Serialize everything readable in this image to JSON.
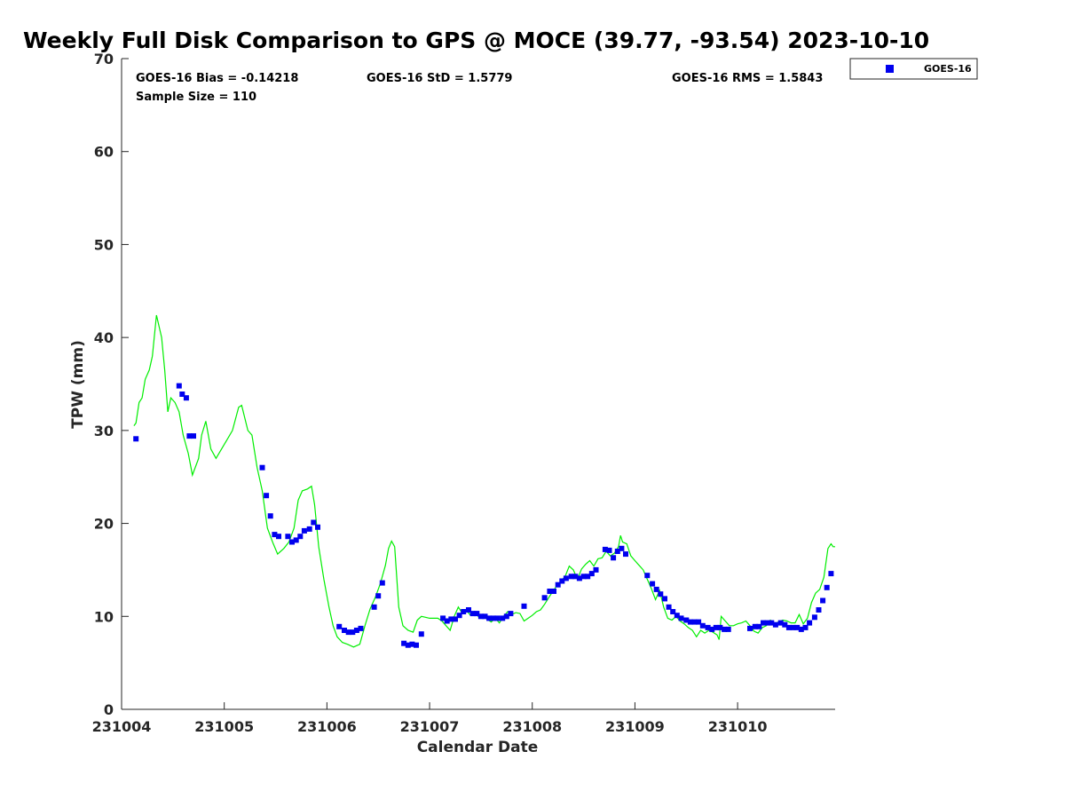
{
  "chart_data": {
    "type": "scatter",
    "title": "Weekly Full Disk Comparison to GPS @ MOCE (39.77, -93.54) 2023-10-10",
    "xlabel": "Calendar Date",
    "ylabel": "TPW (mm)",
    "x_tick_labels": [
      "231004",
      "231005",
      "231006",
      "231007",
      "231008",
      "231009",
      "231010"
    ],
    "x_tick_values": [
      4,
      5,
      6,
      7,
      8,
      9,
      10
    ],
    "xlim": [
      4,
      10.95
    ],
    "ylim": [
      0,
      70
    ],
    "y_tick_values": [
      0,
      10,
      20,
      30,
      40,
      50,
      60,
      70
    ],
    "y_tick_labels": [
      "0",
      "10",
      "20",
      "30",
      "40",
      "50",
      "60",
      "70"
    ],
    "grid": false,
    "legend_position": "outside-top-right",
    "annotations": {
      "bias": "GOES-16 Bias = -0.14218",
      "std": "GOES-16 StD = 1.5779",
      "rms": "GOES-16 RMS = 1.5843",
      "sample_size": "Sample Size = 110"
    },
    "series": [
      {
        "name": "GOES-16",
        "kind": "markers",
        "color": "#0000ee",
        "points": [
          [
            4.14,
            29.1
          ],
          [
            4.56,
            34.8
          ],
          [
            4.59,
            33.9
          ],
          [
            4.63,
            33.5
          ],
          [
            4.66,
            29.4
          ],
          [
            4.7,
            29.4
          ],
          [
            5.37,
            26.0
          ],
          [
            5.41,
            23.0
          ],
          [
            5.45,
            20.8
          ],
          [
            5.49,
            18.8
          ],
          [
            5.53,
            18.6
          ],
          [
            5.62,
            18.6
          ],
          [
            5.66,
            18.0
          ],
          [
            5.7,
            18.2
          ],
          [
            5.74,
            18.6
          ],
          [
            5.78,
            19.2
          ],
          [
            5.83,
            19.4
          ],
          [
            5.87,
            20.1
          ],
          [
            5.91,
            19.6
          ],
          [
            6.12,
            8.9
          ],
          [
            6.17,
            8.5
          ],
          [
            6.21,
            8.3
          ],
          [
            6.25,
            8.3
          ],
          [
            6.29,
            8.5
          ],
          [
            6.33,
            8.7
          ],
          [
            6.46,
            11.0
          ],
          [
            6.5,
            12.2
          ],
          [
            6.54,
            13.6
          ],
          [
            6.75,
            7.1
          ],
          [
            6.79,
            6.9
          ],
          [
            6.83,
            7.0
          ],
          [
            6.87,
            6.9
          ],
          [
            6.92,
            8.1
          ],
          [
            7.13,
            9.8
          ],
          [
            7.17,
            9.5
          ],
          [
            7.21,
            9.7
          ],
          [
            7.25,
            9.7
          ],
          [
            7.29,
            10.1
          ],
          [
            7.33,
            10.5
          ],
          [
            7.38,
            10.7
          ],
          [
            7.42,
            10.3
          ],
          [
            7.46,
            10.3
          ],
          [
            7.5,
            10.0
          ],
          [
            7.54,
            10.0
          ],
          [
            7.58,
            9.8
          ],
          [
            7.62,
            9.8
          ],
          [
            7.66,
            9.8
          ],
          [
            7.71,
            9.8
          ],
          [
            7.75,
            10.0
          ],
          [
            7.79,
            10.3
          ],
          [
            7.92,
            11.1
          ],
          [
            8.12,
            12.0
          ],
          [
            8.17,
            12.7
          ],
          [
            8.21,
            12.7
          ],
          [
            8.25,
            13.4
          ],
          [
            8.29,
            13.8
          ],
          [
            8.33,
            14.1
          ],
          [
            8.38,
            14.3
          ],
          [
            8.42,
            14.3
          ],
          [
            8.46,
            14.1
          ],
          [
            8.5,
            14.3
          ],
          [
            8.54,
            14.3
          ],
          [
            8.58,
            14.6
          ],
          [
            8.62,
            15.0
          ],
          [
            8.71,
            17.2
          ],
          [
            8.75,
            17.1
          ],
          [
            8.79,
            16.3
          ],
          [
            8.83,
            17.0
          ],
          [
            8.87,
            17.3
          ],
          [
            8.91,
            16.7
          ],
          [
            9.12,
            14.4
          ],
          [
            9.17,
            13.5
          ],
          [
            9.21,
            12.9
          ],
          [
            9.25,
            12.4
          ],
          [
            9.29,
            11.9
          ],
          [
            9.33,
            11.0
          ],
          [
            9.37,
            10.5
          ],
          [
            9.41,
            10.1
          ],
          [
            9.45,
            9.8
          ],
          [
            9.5,
            9.6
          ],
          [
            9.54,
            9.4
          ],
          [
            9.58,
            9.4
          ],
          [
            9.62,
            9.4
          ],
          [
            9.66,
            9.0
          ],
          [
            9.71,
            8.8
          ],
          [
            9.75,
            8.6
          ],
          [
            9.79,
            8.8
          ],
          [
            9.83,
            8.8
          ],
          [
            9.87,
            8.6
          ],
          [
            9.91,
            8.6
          ],
          [
            10.12,
            8.7
          ],
          [
            10.17,
            8.9
          ],
          [
            10.21,
            8.9
          ],
          [
            10.25,
            9.3
          ],
          [
            10.29,
            9.3
          ],
          [
            10.33,
            9.3
          ],
          [
            10.37,
            9.1
          ],
          [
            10.42,
            9.3
          ],
          [
            10.46,
            9.1
          ],
          [
            10.5,
            8.8
          ],
          [
            10.54,
            8.8
          ],
          [
            10.58,
            8.8
          ],
          [
            10.62,
            8.6
          ],
          [
            10.66,
            8.8
          ],
          [
            10.7,
            9.3
          ],
          [
            10.75,
            9.9
          ],
          [
            10.79,
            10.7
          ],
          [
            10.83,
            11.7
          ],
          [
            10.87,
            13.1
          ],
          [
            10.91,
            14.6
          ]
        ]
      },
      {
        "kind": "line",
        "color": "#00ee00",
        "points": [
          [
            4.12,
            30.5
          ],
          [
            4.14,
            30.8
          ],
          [
            4.17,
            33.0
          ],
          [
            4.2,
            33.5
          ],
          [
            4.23,
            35.5
          ],
          [
            4.27,
            36.5
          ],
          [
            4.3,
            38.0
          ],
          [
            4.34,
            42.4
          ],
          [
            4.39,
            40.0
          ],
          [
            4.42,
            36.5
          ],
          [
            4.45,
            32.0
          ],
          [
            4.48,
            33.5
          ],
          [
            4.52,
            33.0
          ],
          [
            4.56,
            32.0
          ],
          [
            4.6,
            29.5
          ],
          [
            4.65,
            27.5
          ],
          [
            4.69,
            25.2
          ],
          [
            4.75,
            27.0
          ],
          [
            4.78,
            29.5
          ],
          [
            4.82,
            31.0
          ],
          [
            4.87,
            28.0
          ],
          [
            4.92,
            27.0
          ],
          [
            5.0,
            28.5
          ],
          [
            5.08,
            30.0
          ],
          [
            5.14,
            32.5
          ],
          [
            5.17,
            32.7
          ],
          [
            5.23,
            30.0
          ],
          [
            5.27,
            29.5
          ],
          [
            5.32,
            26.0
          ],
          [
            5.37,
            23.5
          ],
          [
            5.42,
            19.5
          ],
          [
            5.47,
            18.0
          ],
          [
            5.52,
            16.7
          ],
          [
            5.58,
            17.3
          ],
          [
            5.63,
            18.0
          ],
          [
            5.68,
            19.5
          ],
          [
            5.72,
            22.5
          ],
          [
            5.76,
            23.5
          ],
          [
            5.81,
            23.7
          ],
          [
            5.85,
            24.0
          ],
          [
            5.88,
            22.0
          ],
          [
            5.92,
            17.5
          ],
          [
            5.97,
            14.0
          ],
          [
            6.02,
            11.0
          ],
          [
            6.06,
            9.0
          ],
          [
            6.1,
            7.8
          ],
          [
            6.15,
            7.2
          ],
          [
            6.2,
            7.0
          ],
          [
            6.26,
            6.7
          ],
          [
            6.32,
            7.0
          ],
          [
            6.37,
            9.0
          ],
          [
            6.42,
            10.8
          ],
          [
            6.47,
            12.0
          ],
          [
            6.52,
            13.5
          ],
          [
            6.57,
            15.5
          ],
          [
            6.6,
            17.3
          ],
          [
            6.63,
            18.1
          ],
          [
            6.66,
            17.5
          ],
          [
            6.7,
            11.0
          ],
          [
            6.74,
            9.0
          ],
          [
            6.79,
            8.5
          ],
          [
            6.84,
            8.3
          ],
          [
            6.88,
            9.6
          ],
          [
            6.92,
            10.0
          ],
          [
            6.96,
            9.9
          ],
          [
            7.0,
            9.8
          ],
          [
            7.04,
            9.8
          ],
          [
            7.08,
            9.8
          ],
          [
            7.12,
            9.5
          ],
          [
            7.16,
            9.0
          ],
          [
            7.2,
            8.5
          ],
          [
            7.24,
            10.0
          ],
          [
            7.28,
            11.0
          ],
          [
            7.32,
            10.3
          ],
          [
            7.36,
            10.6
          ],
          [
            7.4,
            10.1
          ],
          [
            7.44,
            10.5
          ],
          [
            7.48,
            9.9
          ],
          [
            7.52,
            10.0
          ],
          [
            7.56,
            9.7
          ],
          [
            7.6,
            9.4
          ],
          [
            7.64,
            9.8
          ],
          [
            7.68,
            9.3
          ],
          [
            7.72,
            10.0
          ],
          [
            7.76,
            10.5
          ],
          [
            7.8,
            10.2
          ],
          [
            7.84,
            10.4
          ],
          [
            7.88,
            10.3
          ],
          [
            7.92,
            9.5
          ],
          [
            7.96,
            9.8
          ],
          [
            8.0,
            10.1
          ],
          [
            8.04,
            10.5
          ],
          [
            8.08,
            10.7
          ],
          [
            8.12,
            11.3
          ],
          [
            8.16,
            12.0
          ],
          [
            8.2,
            12.7
          ],
          [
            8.24,
            13.3
          ],
          [
            8.28,
            13.8
          ],
          [
            8.32,
            14.3
          ],
          [
            8.36,
            15.4
          ],
          [
            8.4,
            15.0
          ],
          [
            8.44,
            14.0
          ],
          [
            8.48,
            15.1
          ],
          [
            8.52,
            15.6
          ],
          [
            8.56,
            16.0
          ],
          [
            8.6,
            15.4
          ],
          [
            8.64,
            16.2
          ],
          [
            8.68,
            16.3
          ],
          [
            8.72,
            17.0
          ],
          [
            8.76,
            16.5
          ],
          [
            8.8,
            16.8
          ],
          [
            8.84,
            17.5
          ],
          [
            8.86,
            18.7
          ],
          [
            8.88,
            18.0
          ],
          [
            8.92,
            17.8
          ],
          [
            8.96,
            16.5
          ],
          [
            9.0,
            16.0
          ],
          [
            9.04,
            15.5
          ],
          [
            9.08,
            15.0
          ],
          [
            9.12,
            14.0
          ],
          [
            9.16,
            13.0
          ],
          [
            9.2,
            11.8
          ],
          [
            9.24,
            12.8
          ],
          [
            9.28,
            11.0
          ],
          [
            9.32,
            9.8
          ],
          [
            9.36,
            9.6
          ],
          [
            9.4,
            10.0
          ],
          [
            9.44,
            9.5
          ],
          [
            9.48,
            9.2
          ],
          [
            9.52,
            8.8
          ],
          [
            9.56,
            8.5
          ],
          [
            9.6,
            7.8
          ],
          [
            9.64,
            8.5
          ],
          [
            9.68,
            8.2
          ],
          [
            9.72,
            8.5
          ],
          [
            9.76,
            8.3
          ],
          [
            9.8,
            8.0
          ],
          [
            9.82,
            7.5
          ],
          [
            9.84,
            10.0
          ],
          [
            9.88,
            9.5
          ],
          [
            9.92,
            9.0
          ],
          [
            9.96,
            9.0
          ],
          [
            10.0,
            9.2
          ],
          [
            10.04,
            9.3
          ],
          [
            10.08,
            9.5
          ],
          [
            10.12,
            9.0
          ],
          [
            10.16,
            8.4
          ],
          [
            10.2,
            8.2
          ],
          [
            10.24,
            8.8
          ],
          [
            10.28,
            9.0
          ],
          [
            10.32,
            9.6
          ],
          [
            10.36,
            9.2
          ],
          [
            10.4,
            9.4
          ],
          [
            10.44,
            9.6
          ],
          [
            10.48,
            9.5
          ],
          [
            10.52,
            9.3
          ],
          [
            10.56,
            9.3
          ],
          [
            10.6,
            10.2
          ],
          [
            10.64,
            9.2
          ],
          [
            10.68,
            9.8
          ],
          [
            10.72,
            11.5
          ],
          [
            10.76,
            12.5
          ],
          [
            10.8,
            12.9
          ],
          [
            10.84,
            14.2
          ],
          [
            10.88,
            17.3
          ],
          [
            10.91,
            17.8
          ],
          [
            10.93,
            17.5
          ],
          [
            10.95,
            17.5
          ]
        ]
      }
    ]
  }
}
